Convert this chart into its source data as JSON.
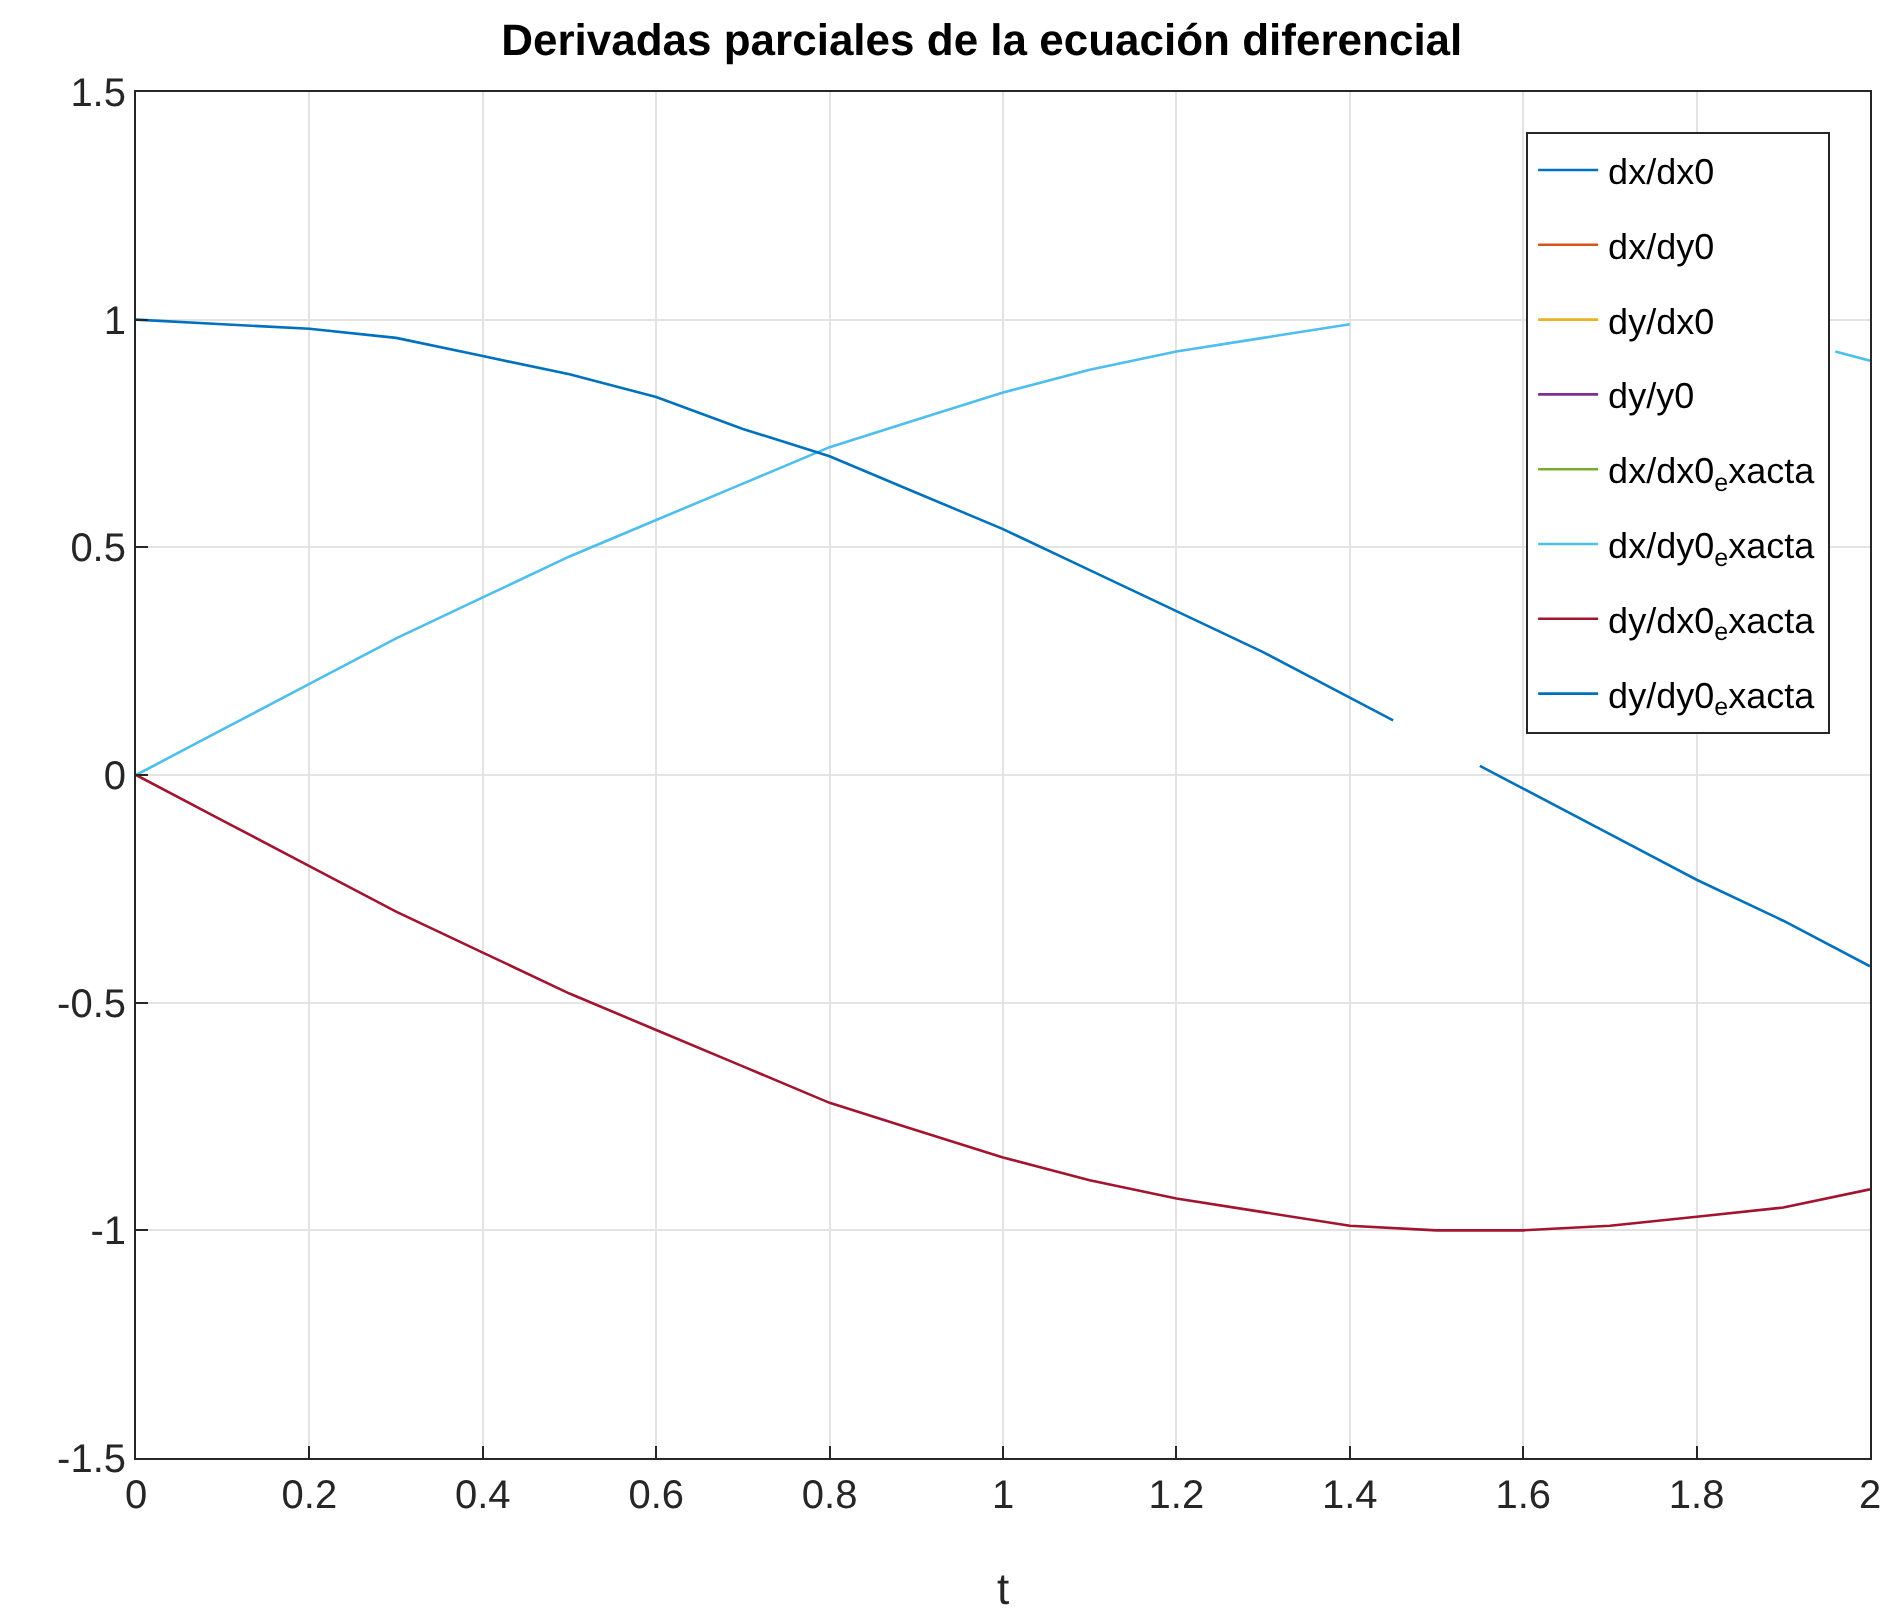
{
  "chart_data": {
    "type": "line",
    "title": "Derivadas parciales de la ecuación diferencial",
    "xlabel": "t",
    "x": [
      0,
      0.1,
      0.2,
      0.3,
      0.4,
      0.5,
      0.6,
      0.7,
      0.8,
      0.9,
      1,
      1.1,
      1.2,
      1.3,
      1.4,
      1.5,
      1.6,
      1.7,
      1.8,
      1.9,
      2
    ],
    "series": [
      {
        "name": "dx/dx0",
        "color": "#0072bd",
        "values": [
          null,
          null,
          null,
          null,
          null,
          null,
          null,
          null,
          null,
          null,
          null,
          null,
          null,
          null,
          null,
          null,
          null,
          null,
          null,
          null,
          null
        ]
      },
      {
        "name": "dx/dy0",
        "color": "#d95319",
        "values": [
          null,
          null,
          null,
          null,
          null,
          null,
          null,
          null,
          null,
          null,
          null,
          null,
          null,
          null,
          null,
          null,
          null,
          null,
          null,
          null,
          null
        ]
      },
      {
        "name": "dy/dx0",
        "color": "#edb120",
        "values": [
          null,
          null,
          null,
          null,
          null,
          null,
          null,
          null,
          null,
          null,
          null,
          null,
          null,
          null,
          null,
          null,
          null,
          null,
          null,
          null,
          null
        ]
      },
      {
        "name": "dy/y0",
        "color": "#7e2f8e",
        "values": [
          null,
          null,
          null,
          null,
          null,
          null,
          null,
          null,
          null,
          null,
          null,
          null,
          null,
          null,
          null,
          null,
          null,
          null,
          null,
          null,
          null
        ]
      },
      {
        "name": "dx/dx0$_{e}$xacta",
        "color": "#77ac30",
        "values": [
          null,
          null,
          null,
          null,
          null,
          null,
          null,
          null,
          null,
          null,
          null,
          null,
          null,
          null,
          null,
          null,
          null,
          null,
          null,
          null,
          null
        ]
      },
      {
        "name": "dx/dy0$_{e}$xacta",
        "color": "#4dbeee",
        "x": [
          0,
          0.1,
          0.2,
          0.3,
          0.4,
          0.5,
          0.6,
          0.7,
          0.8,
          0.9,
          1,
          1.1,
          1.2,
          1.3,
          1.4,
          1.5,
          1.6,
          1.7,
          1.8,
          1.9,
          1.96,
          2
        ],
        "values": [
          0,
          0.1,
          0.2,
          0.3,
          0.39,
          0.48,
          0.56,
          0.64,
          0.72,
          0.78,
          0.84,
          0.89,
          0.93,
          0.96,
          0.99,
          null,
          null,
          null,
          null,
          null,
          0.93,
          0.91
        ]
      },
      {
        "name": "dy/dx0$_{e}$xacta",
        "color": "#a2142f",
        "values": [
          0,
          -0.1,
          -0.2,
          -0.3,
          -0.39,
          -0.48,
          -0.56,
          -0.64,
          -0.72,
          -0.78,
          -0.84,
          -0.89,
          -0.93,
          -0.96,
          -0.99,
          -1.0,
          -1.0,
          -0.99,
          -0.97,
          -0.95,
          -0.91
        ]
      },
      {
        "name": "dy/dy0$_{e}$xacta",
        "color": "#0072bd",
        "x": [
          0,
          0.1,
          0.2,
          0.3,
          0.4,
          0.5,
          0.6,
          0.7,
          0.8,
          0.9,
          1,
          1.1,
          1.2,
          1.3,
          1.4,
          1.45,
          1.5,
          1.55,
          1.6,
          1.7,
          1.8,
          1.9,
          2
        ],
        "values": [
          1,
          0.99,
          0.98,
          0.96,
          0.92,
          0.88,
          0.83,
          0.76,
          0.7,
          0.62,
          0.54,
          0.45,
          0.36,
          0.27,
          0.17,
          0.12,
          null,
          0.02,
          -0.03,
          -0.13,
          -0.23,
          -0.32,
          -0.42
        ]
      }
    ],
    "xlim": [
      0,
      2
    ],
    "ylim": [
      -1.5,
      1.5
    ],
    "xticks": [
      0,
      0.2,
      0.4,
      0.6,
      0.8,
      1,
      1.2,
      1.4,
      1.6,
      1.8,
      2
    ],
    "yticks": [
      -1.5,
      -1,
      -0.5,
      0,
      0.5,
      1,
      1.5
    ],
    "grid": true,
    "legend": "top right"
  }
}
